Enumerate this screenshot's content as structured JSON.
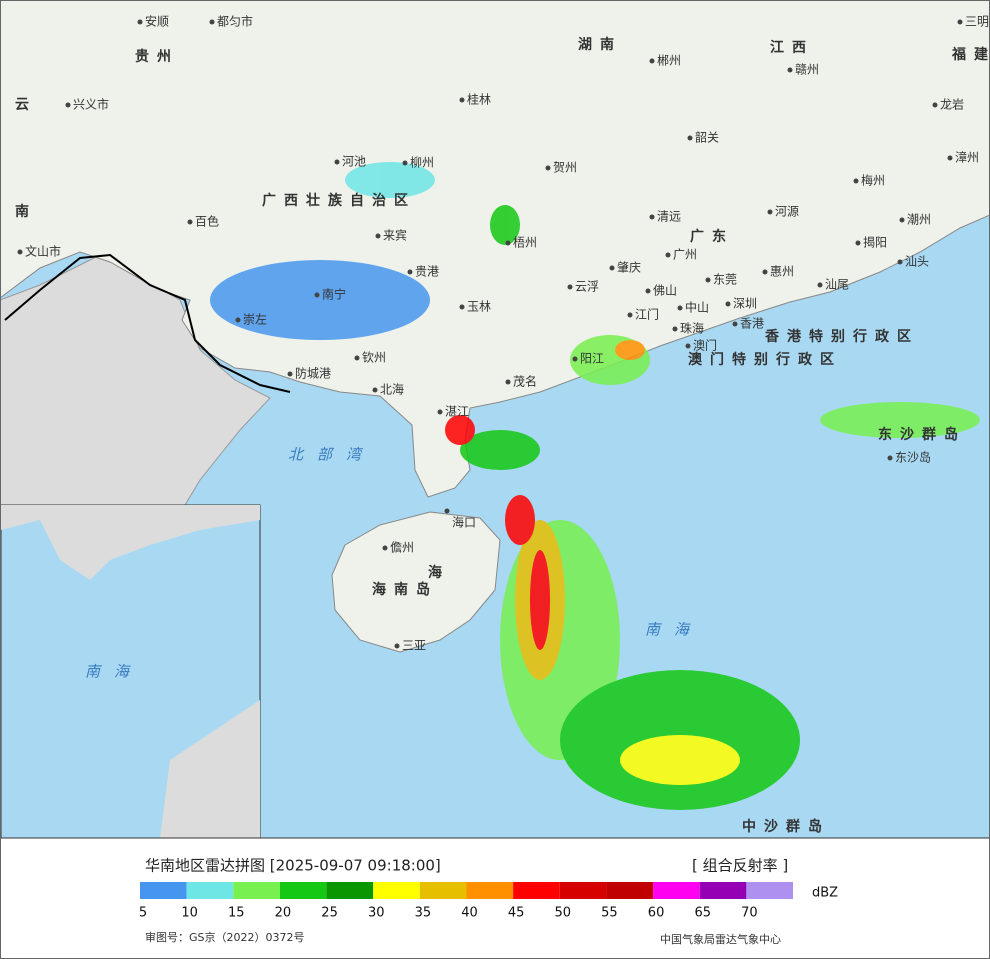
{
  "map": {
    "places": [
      "安顺",
      "都匀市",
      "兴义市",
      "河池",
      "柳州",
      "百色",
      "来宾",
      "贺州",
      "桂林",
      "郴州",
      "赣州",
      "韶关",
      "梅州",
      "漳州",
      "龙岩",
      "三明",
      "河源",
      "清远",
      "潮州",
      "揭阳",
      "汕头",
      "广州",
      "肇庆",
      "梧州",
      "贵港",
      "南宁",
      "玉林",
      "云浮",
      "佛山",
      "东莞",
      "惠州",
      "汕尾",
      "深圳",
      "中山",
      "江门",
      "珠海",
      "澳门",
      "香港",
      "崇左",
      "钦州",
      "防城港",
      "北海",
      "阳江",
      "茂名",
      "湛江",
      "海口",
      "儋州",
      "三亚",
      "东沙岛",
      "文山市"
    ],
    "regions": [
      "贵州",
      "云",
      "南",
      "湖南",
      "江西",
      "福建",
      "广东",
      "广西壮族自治区",
      "香港特别行政区",
      "澳门特别行政区",
      "海南岛",
      "海",
      "东沙群岛",
      "中沙群岛"
    ],
    "seas": [
      "北部湾",
      "南海"
    ]
  },
  "footer": {
    "title": "华南地区雷达拼图 [2025-09-07 09:18:00]",
    "product": "[ 组合反射率 ]",
    "unit": "dBZ",
    "approval": "审图号：GS京（2022）0372号",
    "agency": "中国气象局雷达气象中心",
    "colors": [
      "#4696ef",
      "#6ee6e6",
      "#78f050",
      "#14c814",
      "#0a9600",
      "#ffff00",
      "#e6c000",
      "#ff9000",
      "#ff0000",
      "#d70000",
      "#c00000",
      "#ff00f0",
      "#9600b4",
      "#ad90f0"
    ],
    "ticks": [
      5,
      10,
      15,
      20,
      25,
      30,
      35,
      40,
      45,
      50,
      55,
      60,
      65,
      70
    ]
  }
}
